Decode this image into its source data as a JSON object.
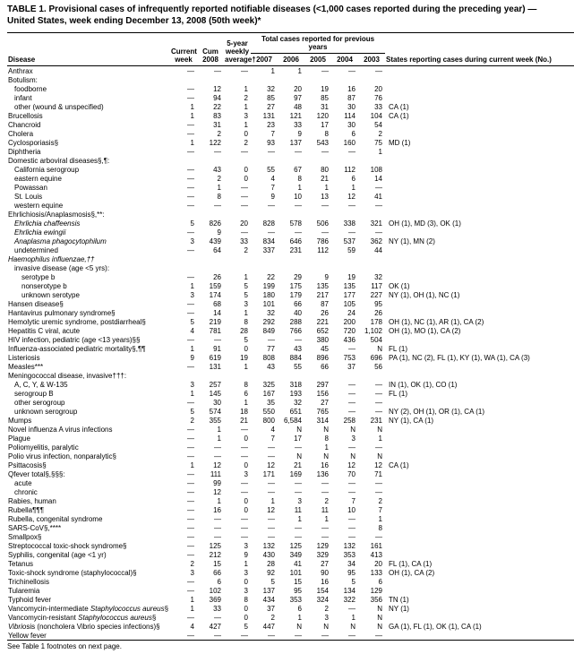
{
  "title": "TABLE 1. Provisional cases of infrequently reported notifiable diseases (<1,000 cases reported during the preceding year) — United States, week ending December 13, 2008 (50th week)*",
  "header": {
    "disease": "Disease",
    "current_week": "Current week",
    "cum_2008": "Cum 2008",
    "avg": "5-year weekly average†",
    "group": "Total cases reported for previous years",
    "y2007": "2007",
    "y2006": "2006",
    "y2005": "2005",
    "y2004": "2004",
    "y2003": "2003",
    "states": "States reporting cases during current week (No.)"
  },
  "footnote": "See Table 1 footnotes on next page.",
  "rows": [
    {
      "d": "Anthrax",
      "i": 0,
      "v": [
        "—",
        "—",
        "—",
        "1",
        "1",
        "—",
        "—",
        "—"
      ],
      "s": ""
    },
    {
      "d": "Botulism:",
      "i": 0,
      "v": [
        "",
        "",
        "",
        "",
        "",
        "",
        "",
        ""
      ],
      "s": ""
    },
    {
      "d": "foodborne",
      "i": 1,
      "v": [
        "—",
        "12",
        "1",
        "32",
        "20",
        "19",
        "16",
        "20"
      ],
      "s": ""
    },
    {
      "d": "infant",
      "i": 1,
      "v": [
        "—",
        "94",
        "2",
        "85",
        "97",
        "85",
        "87",
        "76"
      ],
      "s": ""
    },
    {
      "d": "other (wound & unspecified)",
      "i": 1,
      "v": [
        "1",
        "22",
        "1",
        "27",
        "48",
        "31",
        "30",
        "33"
      ],
      "s": "CA (1)"
    },
    {
      "d": "Brucellosis",
      "i": 0,
      "v": [
        "1",
        "83",
        "3",
        "131",
        "121",
        "120",
        "114",
        "104"
      ],
      "s": "CA (1)"
    },
    {
      "d": "Chancroid",
      "i": 0,
      "v": [
        "—",
        "31",
        "1",
        "23",
        "33",
        "17",
        "30",
        "54"
      ],
      "s": ""
    },
    {
      "d": "Cholera",
      "i": 0,
      "v": [
        "—",
        "2",
        "0",
        "7",
        "9",
        "8",
        "6",
        "2"
      ],
      "s": ""
    },
    {
      "d": "Cyclosporiasis§",
      "i": 0,
      "v": [
        "1",
        "122",
        "2",
        "93",
        "137",
        "543",
        "160",
        "75"
      ],
      "s": "MD (1)"
    },
    {
      "d": "Diphtheria",
      "i": 0,
      "v": [
        "—",
        "—",
        "—",
        "—",
        "—",
        "—",
        "—",
        "1"
      ],
      "s": ""
    },
    {
      "d": "Domestic arboviral diseases§,¶:",
      "i": 0,
      "v": [
        "",
        "",
        "",
        "",
        "",
        "",
        "",
        ""
      ],
      "s": ""
    },
    {
      "d": "California serogroup",
      "i": 1,
      "v": [
        "—",
        "43",
        "0",
        "55",
        "67",
        "80",
        "112",
        "108"
      ],
      "s": ""
    },
    {
      "d": "eastern equine",
      "i": 1,
      "v": [
        "—",
        "2",
        "0",
        "4",
        "8",
        "21",
        "6",
        "14"
      ],
      "s": ""
    },
    {
      "d": "Powassan",
      "i": 1,
      "v": [
        "—",
        "1",
        "—",
        "7",
        "1",
        "1",
        "1",
        "—"
      ],
      "s": ""
    },
    {
      "d": "St. Louis",
      "i": 1,
      "v": [
        "—",
        "8",
        "—",
        "9",
        "10",
        "13",
        "12",
        "41"
      ],
      "s": ""
    },
    {
      "d": "western equine",
      "i": 1,
      "v": [
        "—",
        "—",
        "—",
        "—",
        "—",
        "—",
        "—",
        "—"
      ],
      "s": ""
    },
    {
      "d": "Ehrlichiosis/Anaplasmosis§,**:",
      "i": 0,
      "v": [
        "",
        "",
        "",
        "",
        "",
        "",
        "",
        ""
      ],
      "s": ""
    },
    {
      "d": "Ehrlichia chaffeensis",
      "i": 1,
      "v": [
        "5",
        "826",
        "20",
        "828",
        "578",
        "506",
        "338",
        "321"
      ],
      "s": "OH (1), MD (3), OK (1)",
      "it": true
    },
    {
      "d": "Ehrlichia ewingii",
      "i": 1,
      "v": [
        "—",
        "9",
        "—",
        "—",
        "—",
        "—",
        "—",
        "—"
      ],
      "s": "",
      "it": true
    },
    {
      "d": "Anaplasma phagocytophilum",
      "i": 1,
      "v": [
        "3",
        "439",
        "33",
        "834",
        "646",
        "786",
        "537",
        "362"
      ],
      "s": "NY (1), MN (2)",
      "it": true
    },
    {
      "d": "undetermined",
      "i": 1,
      "v": [
        "—",
        "64",
        "2",
        "337",
        "231",
        "112",
        "59",
        "44"
      ],
      "s": ""
    },
    {
      "d": "Haemophilus influenzae,††",
      "i": 0,
      "v": [
        "",
        "",
        "",
        "",
        "",
        "",
        "",
        ""
      ],
      "s": "",
      "it": true
    },
    {
      "d": "invasive disease (age <5 yrs):",
      "i": 1,
      "v": [
        "",
        "",
        "",
        "",
        "",
        "",
        "",
        ""
      ],
      "s": ""
    },
    {
      "d": "serotype b",
      "i": 2,
      "v": [
        "—",
        "26",
        "1",
        "22",
        "29",
        "9",
        "19",
        "32"
      ],
      "s": ""
    },
    {
      "d": "nonserotype b",
      "i": 2,
      "v": [
        "1",
        "159",
        "5",
        "199",
        "175",
        "135",
        "135",
        "117"
      ],
      "s": "OK (1)"
    },
    {
      "d": "unknown serotype",
      "i": 2,
      "v": [
        "3",
        "174",
        "5",
        "180",
        "179",
        "217",
        "177",
        "227"
      ],
      "s": "NY (1), OH (1), NC (1)"
    },
    {
      "d": "Hansen disease§",
      "i": 0,
      "v": [
        "—",
        "68",
        "3",
        "101",
        "66",
        "87",
        "105",
        "95"
      ],
      "s": ""
    },
    {
      "d": "Hantavirus pulmonary syndrome§",
      "i": 0,
      "v": [
        "—",
        "14",
        "1",
        "32",
        "40",
        "26",
        "24",
        "26"
      ],
      "s": ""
    },
    {
      "d": "Hemolytic uremic syndrome, postdiarrheal§",
      "i": 0,
      "v": [
        "5",
        "219",
        "8",
        "292",
        "288",
        "221",
        "200",
        "178"
      ],
      "s": "OH (1), NC (1), AR (1), CA (2)"
    },
    {
      "d": "Hepatitis C viral, acute",
      "i": 0,
      "v": [
        "4",
        "781",
        "28",
        "849",
        "766",
        "652",
        "720",
        "1,102"
      ],
      "s": "OH (1), MO (1), CA (2)"
    },
    {
      "d": "HIV infection, pediatric (age <13 years)§§",
      "i": 0,
      "v": [
        "—",
        "—",
        "5",
        "—",
        "—",
        "380",
        "436",
        "504"
      ],
      "s": ""
    },
    {
      "d": "Influenza-associated pediatric mortality§,¶¶",
      "i": 0,
      "v": [
        "1",
        "91",
        "0",
        "77",
        "43",
        "45",
        "—",
        "N"
      ],
      "s": "FL (1)"
    },
    {
      "d": "Listeriosis",
      "i": 0,
      "v": [
        "9",
        "619",
        "19",
        "808",
        "884",
        "896",
        "753",
        "696"
      ],
      "s": "PA (1), NC (2), FL (1), KY (1), WA (1), CA (3)"
    },
    {
      "d": "Measles***",
      "i": 0,
      "v": [
        "—",
        "131",
        "1",
        "43",
        "55",
        "66",
        "37",
        "56"
      ],
      "s": ""
    },
    {
      "d": "Meningococcal disease, invasive†††:",
      "i": 0,
      "v": [
        "",
        "",
        "",
        "",
        "",
        "",
        "",
        ""
      ],
      "s": ""
    },
    {
      "d": "A, C, Y, & W-135",
      "i": 1,
      "v": [
        "3",
        "257",
        "8",
        "325",
        "318",
        "297",
        "—",
        "—"
      ],
      "s": "IN (1), OK (1), CO (1)"
    },
    {
      "d": "serogroup B",
      "i": 1,
      "v": [
        "1",
        "145",
        "6",
        "167",
        "193",
        "156",
        "—",
        "—"
      ],
      "s": "FL (1)"
    },
    {
      "d": "other serogroup",
      "i": 1,
      "v": [
        "—",
        "30",
        "1",
        "35",
        "32",
        "27",
        "—",
        "—"
      ],
      "s": ""
    },
    {
      "d": "unknown serogroup",
      "i": 1,
      "v": [
        "5",
        "574",
        "18",
        "550",
        "651",
        "765",
        "—",
        "—"
      ],
      "s": "NY (2), OH (1), OR (1), CA (1)"
    },
    {
      "d": "Mumps",
      "i": 0,
      "v": [
        "2",
        "355",
        "21",
        "800",
        "6,584",
        "314",
        "258",
        "231"
      ],
      "s": "NY (1), CA (1)"
    },
    {
      "d": "Novel influenza A virus infections",
      "i": 0,
      "v": [
        "—",
        "1",
        "—",
        "4",
        "N",
        "N",
        "N",
        "N"
      ],
      "s": ""
    },
    {
      "d": "Plague",
      "i": 0,
      "v": [
        "—",
        "1",
        "0",
        "7",
        "17",
        "8",
        "3",
        "1"
      ],
      "s": ""
    },
    {
      "d": "Poliomyelitis, paralytic",
      "i": 0,
      "v": [
        "—",
        "—",
        "—",
        "—",
        "—",
        "1",
        "—",
        "—"
      ],
      "s": ""
    },
    {
      "d": "Polio virus infection, nonparalytic§",
      "i": 0,
      "v": [
        "—",
        "—",
        "—",
        "—",
        "N",
        "N",
        "N",
        "N"
      ],
      "s": ""
    },
    {
      "d": "Psittacosis§",
      "i": 0,
      "v": [
        "1",
        "12",
        "0",
        "12",
        "21",
        "16",
        "12",
        "12"
      ],
      "s": "CA (1)"
    },
    {
      "d": "Qfever total§,§§§:",
      "i": 0,
      "v": [
        "—",
        "111",
        "3",
        "171",
        "169",
        "136",
        "70",
        "71"
      ],
      "s": ""
    },
    {
      "d": "acute",
      "i": 1,
      "v": [
        "—",
        "99",
        "—",
        "—",
        "—",
        "—",
        "—",
        "—"
      ],
      "s": ""
    },
    {
      "d": "chronic",
      "i": 1,
      "v": [
        "—",
        "12",
        "—",
        "—",
        "—",
        "—",
        "—",
        "—"
      ],
      "s": ""
    },
    {
      "d": "Rabies, human",
      "i": 0,
      "v": [
        "—",
        "1",
        "0",
        "1",
        "3",
        "2",
        "7",
        "2"
      ],
      "s": ""
    },
    {
      "d": "Rubella¶¶¶",
      "i": 0,
      "v": [
        "—",
        "16",
        "0",
        "12",
        "11",
        "11",
        "10",
        "7"
      ],
      "s": ""
    },
    {
      "d": "Rubella, congenital syndrome",
      "i": 0,
      "v": [
        "—",
        "—",
        "—",
        "—",
        "1",
        "1",
        "—",
        "1"
      ],
      "s": ""
    },
    {
      "d": "SARS-CoV§,****",
      "i": 0,
      "v": [
        "—",
        "—",
        "—",
        "—",
        "—",
        "—",
        "—",
        "8"
      ],
      "s": ""
    },
    {
      "d": "Smallpox§",
      "i": 0,
      "v": [
        "—",
        "—",
        "—",
        "—",
        "—",
        "—",
        "—",
        "—"
      ],
      "s": ""
    },
    {
      "d": "Streptococcal toxic-shock syndrome§",
      "i": 0,
      "v": [
        "—",
        "125",
        "3",
        "132",
        "125",
        "129",
        "132",
        "161"
      ],
      "s": ""
    },
    {
      "d": "Syphilis, congenital (age <1 yr)",
      "i": 0,
      "v": [
        "—",
        "212",
        "9",
        "430",
        "349",
        "329",
        "353",
        "413"
      ],
      "s": ""
    },
    {
      "d": "Tetanus",
      "i": 0,
      "v": [
        "2",
        "15",
        "1",
        "28",
        "41",
        "27",
        "34",
        "20"
      ],
      "s": "FL (1), CA (1)"
    },
    {
      "d": "Toxic-shock syndrome (staphylococcal)§",
      "i": 0,
      "v": [
        "3",
        "66",
        "3",
        "92",
        "101",
        "90",
        "95",
        "133"
      ],
      "s": "OH (1), CA (2)"
    },
    {
      "d": "Trichinellosis",
      "i": 0,
      "v": [
        "—",
        "6",
        "0",
        "5",
        "15",
        "16",
        "5",
        "6"
      ],
      "s": ""
    },
    {
      "d": "Tularemia",
      "i": 0,
      "v": [
        "—",
        "102",
        "3",
        "137",
        "95",
        "154",
        "134",
        "129"
      ],
      "s": ""
    },
    {
      "d": "Typhoid fever",
      "i": 0,
      "v": [
        "1",
        "369",
        "8",
        "434",
        "353",
        "324",
        "322",
        "356"
      ],
      "s": "TN (1)"
    },
    {
      "d": "Vancomycin-intermediate Staphylococcus aureus§",
      "i": 0,
      "v": [
        "1",
        "33",
        "0",
        "37",
        "6",
        "2",
        "—",
        "N"
      ],
      "s": "NY (1)",
      "pit": true
    },
    {
      "d": "Vancomycin-resistant Staphylococcus aureus§",
      "i": 0,
      "v": [
        "—",
        "—",
        "0",
        "2",
        "1",
        "3",
        "1",
        "N"
      ],
      "s": "",
      "pit": true
    },
    {
      "d": "Vibriosis (noncholera Vibrio species infections)§",
      "i": 0,
      "v": [
        "4",
        "427",
        "5",
        "447",
        "N",
        "N",
        "N",
        "N"
      ],
      "s": "GA (1), FL (1), OK (1), CA (1)",
      "pit": true
    },
    {
      "d": "Yellow fever",
      "i": 0,
      "v": [
        "—",
        "—",
        "—",
        "—",
        "—",
        "—",
        "—",
        "—"
      ],
      "s": "",
      "last": true
    }
  ]
}
